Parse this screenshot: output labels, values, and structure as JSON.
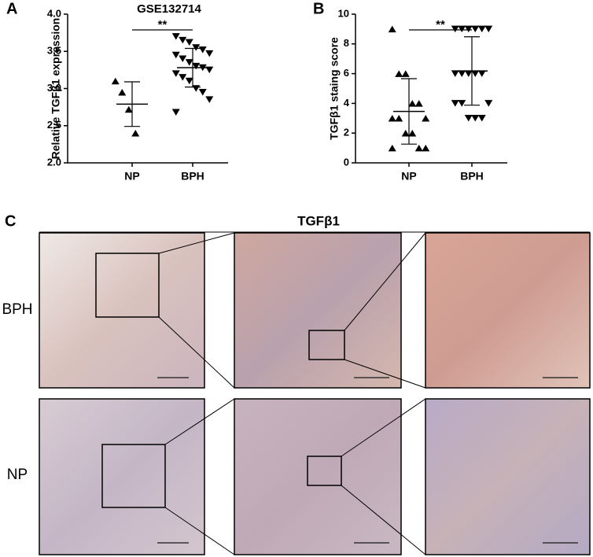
{
  "chart_data": [
    {
      "type": "scatter",
      "panel": "A",
      "title": "GSE132714",
      "ylabel": "Relative TGFβ1 expression",
      "categories": [
        "NP",
        "BPH"
      ],
      "series": [
        {
          "marker": "triangle-up",
          "color": "#000000",
          "values": [
            3.1,
            2.95,
            2.72,
            2.4
          ],
          "mean": 2.79,
          "sd": 0.3
        },
        {
          "marker": "triangle-down",
          "color": "#000000",
          "values": [
            3.7,
            3.65,
            3.62,
            3.55,
            3.52,
            3.47,
            3.45,
            3.4,
            3.35,
            3.3,
            3.28,
            3.25,
            3.2,
            3.15,
            3.1,
            3.0,
            2.95,
            2.85,
            2.68
          ],
          "mean": 3.28,
          "sd": 0.26
        }
      ],
      "ylim": [
        2.0,
        4.0
      ],
      "yticks": [
        {
          "value": 2.0,
          "label": "2.0"
        },
        {
          "value": 2.5,
          "label": "2.5"
        },
        {
          "value": 3.0,
          "label": "3.0"
        },
        {
          "value": 3.5,
          "label": "3.5"
        },
        {
          "value": 4.0,
          "label": "4.0"
        }
      ],
      "annotation": "**"
    },
    {
      "type": "scatter",
      "panel": "B",
      "ylabel": "TGFβ1 staing score",
      "categories": [
        "NP",
        "BPH"
      ],
      "series": [
        {
          "marker": "triangle-up",
          "color": "#000000",
          "values": [
            9,
            6,
            6,
            4,
            4,
            3,
            3,
            3,
            2,
            2,
            1,
            1,
            1
          ],
          "mean": 3.46,
          "sd": 2.2
        },
        {
          "marker": "triangle-down",
          "color": "#000000",
          "values": [
            9,
            9,
            9,
            9,
            9,
            9,
            6,
            6,
            6,
            6,
            6,
            4,
            4,
            4,
            3,
            3,
            3
          ],
          "mean": 6.18,
          "sd": 2.3
        }
      ],
      "ylim": [
        0,
        10
      ],
      "yticks": [
        0,
        2,
        4,
        6,
        8,
        10
      ],
      "annotation": "**"
    }
  ],
  "panel_c": {
    "label": "C",
    "title": "TGFβ1",
    "rows": [
      "BPH",
      "NP"
    ]
  }
}
